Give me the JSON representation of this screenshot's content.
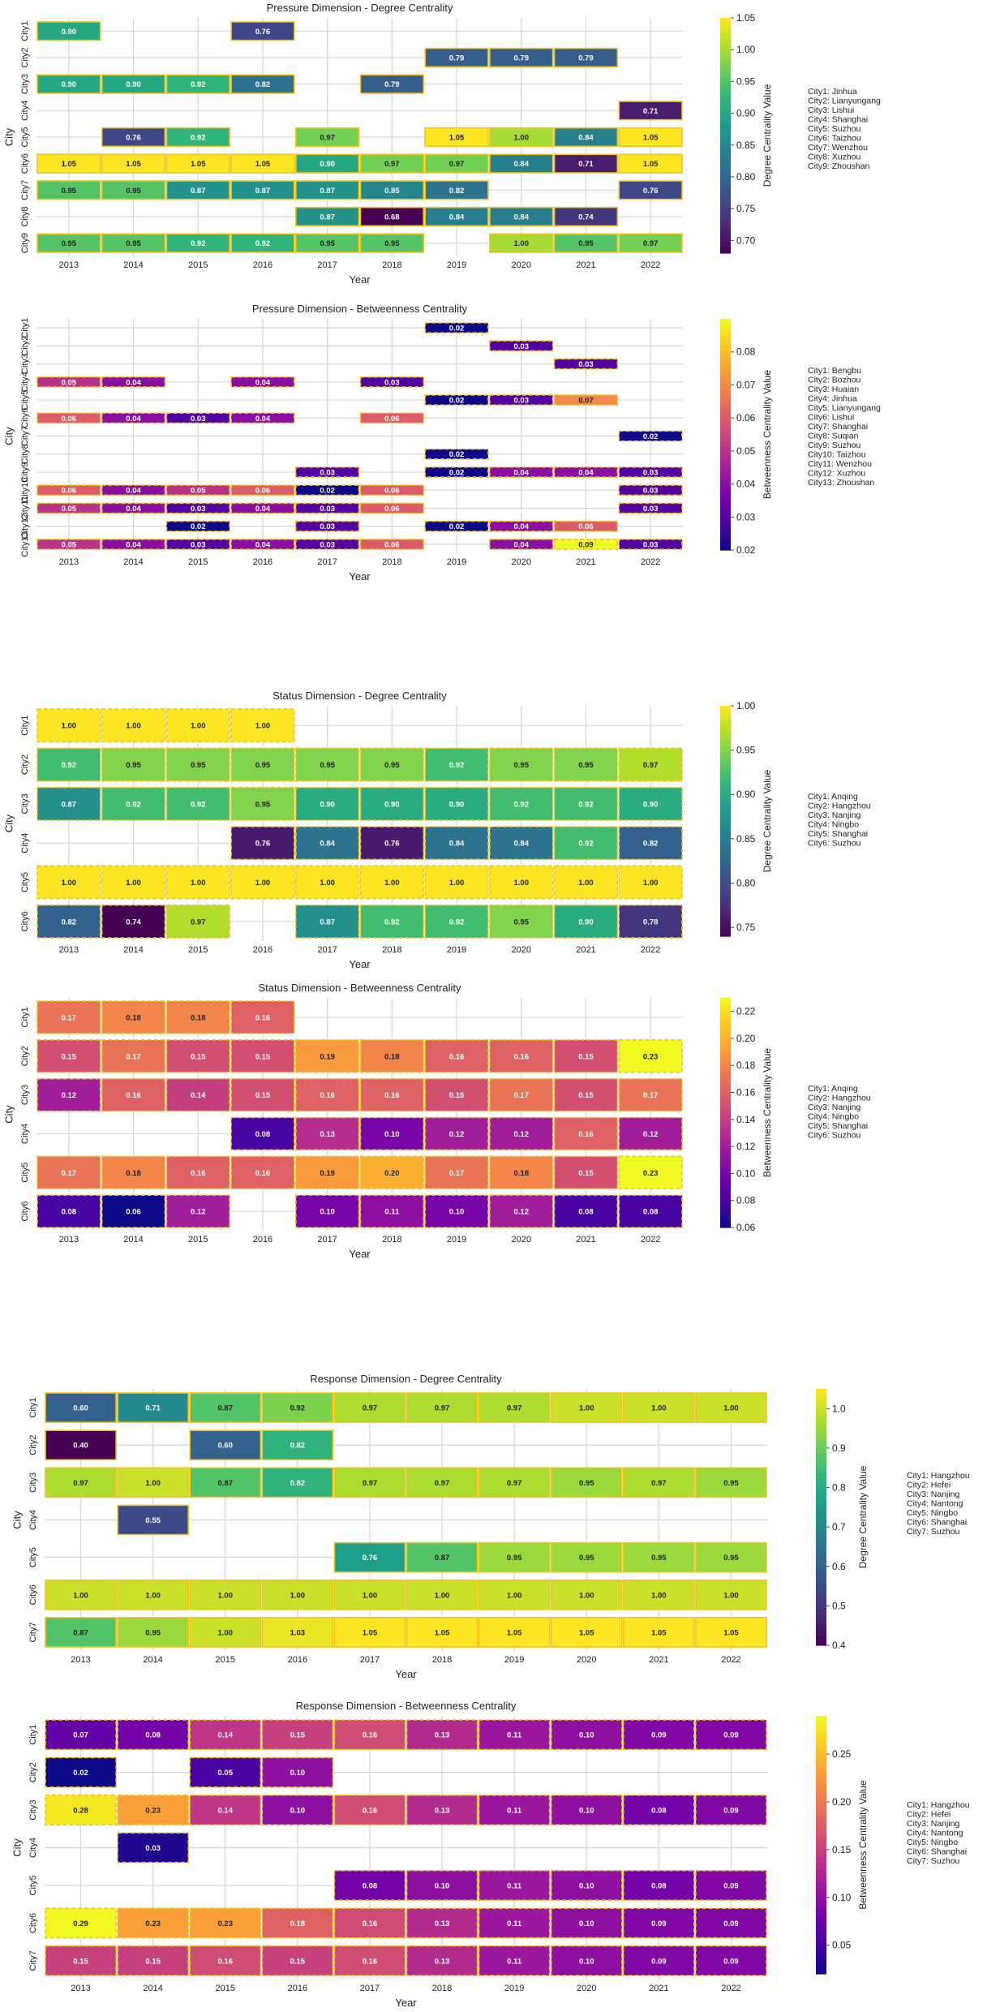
{
  "chart_data": [
    {
      "type": "heatmap",
      "title": "Pressure Dimension - Degree Centrality",
      "xlabel": "Year",
      "ylabel": "City",
      "colorbar_label": "Degree Centrality Value",
      "colormap": "viridis",
      "vmin": 0.68,
      "vmax": 1.05,
      "colorbar_ticks": [
        0.7,
        0.75,
        0.8,
        0.85,
        0.9,
        0.95,
        1.0,
        1.05
      ],
      "years": [
        "2013",
        "2014",
        "2015",
        "2016",
        "2017",
        "2018",
        "2019",
        "2020",
        "2021",
        "2022"
      ],
      "cities": [
        "City1",
        "City2",
        "City3",
        "City4",
        "City5",
        "City6",
        "City7",
        "City8",
        "City9"
      ],
      "legend": [
        "City1: Jinhua",
        "City2: Lianyungang",
        "City3: Lishui",
        "City4: Shanghai",
        "City5: Suzhou",
        "City6: Taizhou",
        "City7: Wenzhou",
        "City8: Xuzhou",
        "City9: Zhoushan"
      ],
      "values": [
        [
          0.9,
          null,
          null,
          0.76,
          null,
          null,
          null,
          null,
          null,
          null
        ],
        [
          null,
          null,
          null,
          null,
          null,
          null,
          0.79,
          0.79,
          0.79,
          null
        ],
        [
          0.9,
          0.9,
          0.92,
          0.82,
          null,
          0.79,
          null,
          null,
          null,
          null
        ],
        [
          null,
          null,
          null,
          null,
          null,
          null,
          null,
          null,
          null,
          0.71
        ],
        [
          null,
          0.76,
          0.92,
          null,
          0.97,
          null,
          1.05,
          1.0,
          0.84,
          1.05
        ],
        [
          1.05,
          1.05,
          1.05,
          1.05,
          0.9,
          0.97,
          0.97,
          0.84,
          0.71,
          1.05
        ],
        [
          0.95,
          0.95,
          0.87,
          0.87,
          0.87,
          0.85,
          0.82,
          null,
          null,
          0.76
        ],
        [
          null,
          null,
          null,
          null,
          0.87,
          0.68,
          0.84,
          0.84,
          0.74,
          null
        ],
        [
          0.95,
          0.95,
          0.92,
          0.92,
          0.95,
          0.95,
          null,
          1.0,
          0.95,
          0.97
        ]
      ]
    },
    {
      "type": "heatmap",
      "title": "Pressure Dimension - Betweenness Centrality",
      "xlabel": "Year",
      "ylabel": "City",
      "colorbar_label": "Betweenness Centrality Value",
      "colormap": "plasma",
      "vmin": 0.02,
      "vmax": 0.09,
      "colorbar_ticks": [
        0.02,
        0.03,
        0.04,
        0.05,
        0.06,
        0.07,
        0.08
      ],
      "years": [
        "2013",
        "2014",
        "2015",
        "2016",
        "2017",
        "2018",
        "2019",
        "2020",
        "2021",
        "2022"
      ],
      "cities": [
        "City1",
        "City2",
        "City3",
        "City4",
        "City5",
        "City6",
        "City7",
        "City8",
        "City9",
        "City10",
        "City11",
        "City12",
        "City13"
      ],
      "legend": [
        "City1: Bengbu",
        "City2: Bozhou",
        "City3: Huaian",
        "City4: Jinhua",
        "City5: Lianyungang",
        "City6: Lishui",
        "City7: Shanghai",
        "City8: Suqian",
        "City9: Suzhou",
        "City10: Taizhou",
        "City11: Wenzhou",
        "City12: Xuzhou",
        "City13: Zhoushan"
      ],
      "values": [
        [
          null,
          null,
          null,
          null,
          null,
          null,
          0.02,
          null,
          null,
          null
        ],
        [
          null,
          null,
          null,
          null,
          null,
          null,
          null,
          0.03,
          null,
          null
        ],
        [
          null,
          null,
          null,
          null,
          null,
          null,
          null,
          null,
          0.03,
          null
        ],
        [
          0.05,
          0.04,
          null,
          0.04,
          null,
          0.03,
          null,
          null,
          null,
          null
        ],
        [
          null,
          null,
          null,
          null,
          null,
          null,
          0.02,
          0.03,
          0.07,
          null
        ],
        [
          0.06,
          0.04,
          0.03,
          0.04,
          null,
          0.06,
          null,
          null,
          null,
          null
        ],
        [
          null,
          null,
          null,
          null,
          null,
          null,
          null,
          null,
          null,
          0.02
        ],
        [
          null,
          null,
          null,
          null,
          null,
          null,
          0.02,
          null,
          null,
          null
        ],
        [
          null,
          null,
          null,
          null,
          0.03,
          null,
          0.02,
          0.04,
          0.04,
          0.03
        ],
        [
          0.06,
          0.04,
          0.05,
          0.06,
          0.02,
          0.06,
          null,
          null,
          null,
          0.03
        ],
        [
          0.05,
          0.04,
          0.03,
          0.04,
          0.03,
          0.06,
          null,
          null,
          null,
          0.03
        ],
        [
          null,
          null,
          0.02,
          null,
          0.03,
          null,
          0.02,
          0.04,
          0.06,
          null
        ],
        [
          0.05,
          0.04,
          0.03,
          0.04,
          0.03,
          0.06,
          null,
          0.04,
          0.09,
          0.03
        ]
      ]
    },
    {
      "type": "heatmap",
      "title": "Status Dimension - Degree Centrality",
      "xlabel": "Year",
      "ylabel": "City",
      "colorbar_label": "Degree Centrality Value",
      "colormap": "viridis",
      "vmin": 0.74,
      "vmax": 1.0,
      "colorbar_ticks": [
        0.75,
        0.8,
        0.85,
        0.9,
        0.95,
        1.0
      ],
      "years": [
        "2013",
        "2014",
        "2015",
        "2016",
        "2017",
        "2018",
        "2019",
        "2020",
        "2021",
        "2022"
      ],
      "cities": [
        "City1",
        "City2",
        "City3",
        "City4",
        "City5",
        "City6"
      ],
      "legend": [
        "City1: Anqing",
        "City2: Hangzhou",
        "City3: Nanjing",
        "City4: Ningbo",
        "City5: Shanghai",
        "City6: Suzhou"
      ],
      "values": [
        [
          1.0,
          1.0,
          1.0,
          1.0,
          null,
          null,
          null,
          null,
          null,
          null
        ],
        [
          0.92,
          0.95,
          0.95,
          0.95,
          0.95,
          0.95,
          0.92,
          0.95,
          0.95,
          0.97
        ],
        [
          0.87,
          0.92,
          0.92,
          0.95,
          0.9,
          0.9,
          0.9,
          0.92,
          0.92,
          0.9
        ],
        [
          null,
          null,
          null,
          0.76,
          0.84,
          0.76,
          0.84,
          0.84,
          0.92,
          0.82
        ],
        [
          1.0,
          1.0,
          1.0,
          1.0,
          1.0,
          1.0,
          1.0,
          1.0,
          1.0,
          1.0
        ],
        [
          0.82,
          0.74,
          0.97,
          null,
          0.87,
          0.92,
          0.92,
          0.95,
          0.9,
          0.78
        ]
      ]
    },
    {
      "type": "heatmap",
      "title": "Status Dimension - Betweenness Centrality",
      "xlabel": "Year",
      "ylabel": "City",
      "colorbar_label": "Betweenness Centrality Value",
      "colormap": "plasma",
      "vmin": 0.06,
      "vmax": 0.23,
      "colorbar_ticks": [
        0.06,
        0.08,
        0.1,
        0.12,
        0.14,
        0.16,
        0.18,
        0.2,
        0.22
      ],
      "years": [
        "2013",
        "2014",
        "2015",
        "2016",
        "2017",
        "2018",
        "2019",
        "2020",
        "2021",
        "2022"
      ],
      "cities": [
        "City1",
        "City2",
        "City3",
        "City4",
        "City5",
        "City6"
      ],
      "legend": [
        "City1: Anqing",
        "City2: Hangzhou",
        "City3: Nanjing",
        "City4: Ningbo",
        "City5: Shanghai",
        "City6: Suzhou"
      ],
      "values": [
        [
          0.17,
          0.18,
          0.18,
          0.16,
          null,
          null,
          null,
          null,
          null,
          null
        ],
        [
          0.15,
          0.17,
          0.15,
          0.15,
          0.19,
          0.18,
          0.16,
          0.16,
          0.15,
          0.23
        ],
        [
          0.12,
          0.16,
          0.14,
          0.15,
          0.16,
          0.16,
          0.15,
          0.17,
          0.15,
          0.17
        ],
        [
          null,
          null,
          null,
          0.08,
          0.13,
          0.1,
          0.12,
          0.12,
          0.16,
          0.12
        ],
        [
          0.17,
          0.18,
          0.16,
          0.16,
          0.19,
          0.2,
          0.17,
          0.18,
          0.15,
          0.23
        ],
        [
          0.08,
          0.06,
          0.12,
          null,
          0.1,
          0.11,
          0.1,
          0.12,
          0.08,
          0.08
        ]
      ]
    },
    {
      "type": "heatmap",
      "title": "Response Dimension - Degree Centrality",
      "xlabel": "Year",
      "ylabel": "City",
      "colorbar_label": "Degree Centrality Value",
      "colormap": "viridis",
      "vmin": 0.4,
      "vmax": 1.05,
      "colorbar_ticks": [
        0.4,
        0.5,
        0.6,
        0.7,
        0.8,
        0.9,
        1.0
      ],
      "years": [
        "2013",
        "2014",
        "2015",
        "2016",
        "2017",
        "2018",
        "2019",
        "2020",
        "2021",
        "2022"
      ],
      "cities": [
        "City1",
        "City2",
        "City3",
        "City4",
        "City5",
        "City6",
        "City7"
      ],
      "legend": [
        "City1: Hangzhou",
        "City2: Hefei",
        "City3: Nanjing",
        "City4: Nantong",
        "City5: Ningbo",
        "City6: Shanghai",
        "City7: Suzhou"
      ],
      "values": [
        [
          0.6,
          0.71,
          0.87,
          0.92,
          0.97,
          0.97,
          0.97,
          1.0,
          1.0,
          1.0
        ],
        [
          0.4,
          null,
          0.6,
          0.82,
          null,
          null,
          null,
          null,
          null,
          null
        ],
        [
          0.97,
          1.0,
          0.87,
          0.82,
          0.97,
          0.97,
          0.97,
          0.95,
          0.97,
          0.95
        ],
        [
          null,
          0.55,
          null,
          null,
          null,
          null,
          null,
          null,
          null,
          null
        ],
        [
          null,
          null,
          null,
          null,
          0.76,
          0.87,
          0.95,
          0.95,
          0.95,
          0.95
        ],
        [
          1.0,
          1.0,
          1.0,
          1.0,
          1.0,
          1.0,
          1.0,
          1.0,
          1.0,
          1.0
        ],
        [
          0.87,
          0.95,
          1.0,
          1.03,
          1.05,
          1.05,
          1.05,
          1.05,
          1.05,
          1.05
        ]
      ]
    },
    {
      "type": "heatmap",
      "title": "Response Dimension - Betweenness Centrality",
      "xlabel": "Year",
      "ylabel": "City",
      "colorbar_label": "Betweenness Centrality Value",
      "colormap": "plasma",
      "vmin": 0.02,
      "vmax": 0.29,
      "colorbar_ticks": [
        0.05,
        0.1,
        0.15,
        0.2,
        0.25
      ],
      "years": [
        "2013",
        "2014",
        "2015",
        "2016",
        "2017",
        "2018",
        "2019",
        "2020",
        "2021",
        "2022"
      ],
      "cities": [
        "City1",
        "City2",
        "City3",
        "City4",
        "City5",
        "City6",
        "City7"
      ],
      "legend": [
        "City1: Hangzhou",
        "City2: Hefei",
        "City3: Nanjing",
        "City4: Nantong",
        "City5: Ningbo",
        "City6: Shanghai",
        "City7: Suzhou"
      ],
      "values": [
        [
          0.07,
          0.08,
          0.14,
          0.15,
          0.16,
          0.13,
          0.11,
          0.1,
          0.09,
          0.09
        ],
        [
          0.02,
          null,
          0.05,
          0.1,
          null,
          null,
          null,
          null,
          null,
          null
        ],
        [
          0.28,
          0.23,
          0.14,
          0.1,
          0.16,
          0.13,
          0.11,
          0.1,
          0.08,
          0.09
        ],
        [
          null,
          0.03,
          null,
          null,
          null,
          null,
          null,
          null,
          null,
          null
        ],
        [
          null,
          null,
          null,
          null,
          0.08,
          0.1,
          0.11,
          0.1,
          0.08,
          0.09
        ],
        [
          0.29,
          0.23,
          0.23,
          0.18,
          0.16,
          0.13,
          0.11,
          0.1,
          0.09,
          0.09
        ],
        [
          0.15,
          0.15,
          0.16,
          0.15,
          0.16,
          0.13,
          0.11,
          0.1,
          0.09,
          0.09
        ]
      ]
    }
  ]
}
